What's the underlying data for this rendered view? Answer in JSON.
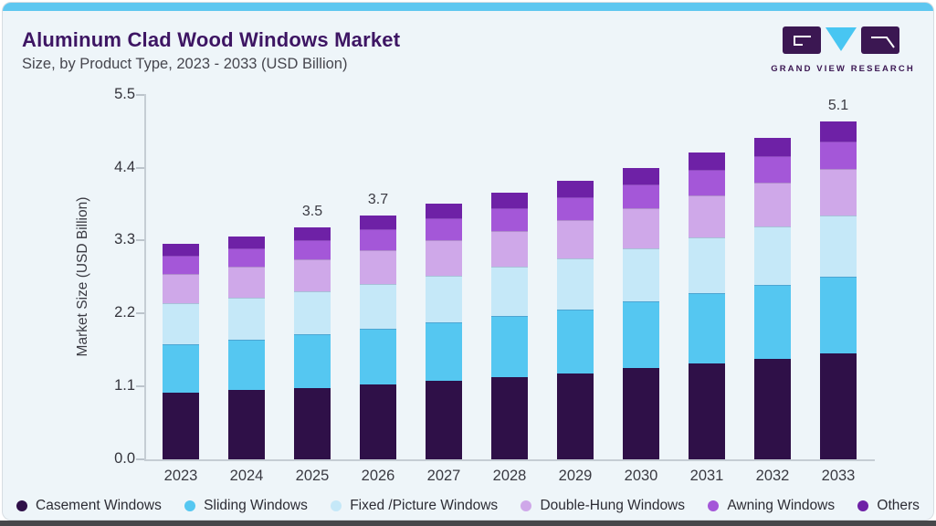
{
  "header": {
    "title": "Aluminum Clad Wood Windows Market",
    "subtitle": "Size, by Product Type, 2023 - 2033 (USD Billion)"
  },
  "logo": {
    "caption": "GRAND VIEW RESEARCH",
    "purple": "#3b1752",
    "cyan": "#48c6f2"
  },
  "chart_data": {
    "type": "bar",
    "stacked": true,
    "title": "Aluminum Clad Wood Windows Market Size, by Product Type, 2023 - 2033 (USD Billion)",
    "categories": [
      "2023",
      "2024",
      "2025",
      "2026",
      "2027",
      "2028",
      "2029",
      "2030",
      "2031",
      "2032",
      "2033"
    ],
    "series": [
      {
        "name": "Casement Windows",
        "color": "#2f1048",
        "values": [
          1.0,
          1.04,
          1.08,
          1.13,
          1.18,
          1.24,
          1.3,
          1.37,
          1.44,
          1.52,
          1.6
        ]
      },
      {
        "name": "Sliding Windows",
        "color": "#55c7f1",
        "values": [
          0.74,
          0.77,
          0.8,
          0.84,
          0.88,
          0.92,
          0.96,
          1.01,
          1.06,
          1.11,
          1.16
        ]
      },
      {
        "name": "Fixed /Picture Windows",
        "color": "#c5e8f8",
        "values": [
          0.61,
          0.63,
          0.65,
          0.68,
          0.71,
          0.74,
          0.77,
          0.8,
          0.84,
          0.88,
          0.92
        ]
      },
      {
        "name": "Double-Hung Windows",
        "color": "#cfa8e9",
        "values": [
          0.45,
          0.46,
          0.48,
          0.5,
          0.53,
          0.55,
          0.58,
          0.61,
          0.64,
          0.67,
          0.7
        ]
      },
      {
        "name": "Awning Windows",
        "color": "#a457d8",
        "values": [
          0.27,
          0.28,
          0.3,
          0.32,
          0.33,
          0.34,
          0.35,
          0.36,
          0.38,
          0.39,
          0.42
        ]
      },
      {
        "name": "Others",
        "color": "#6e21a6",
        "values": [
          0.18,
          0.18,
          0.19,
          0.21,
          0.22,
          0.23,
          0.24,
          0.25,
          0.27,
          0.28,
          0.3
        ]
      }
    ],
    "total_labels": [
      "",
      "",
      "3.5",
      "3.7",
      "",
      "",
      "",
      "",
      "",
      "",
      "5.1"
    ],
    "ylabel": "Market Size (USD Billion)",
    "yticks": [
      "0.0",
      "1.1",
      "2.2",
      "3.3",
      "4.4",
      "5.5"
    ],
    "ylim": [
      0,
      5.5
    ],
    "grid": false,
    "legend_position": "bottom"
  }
}
